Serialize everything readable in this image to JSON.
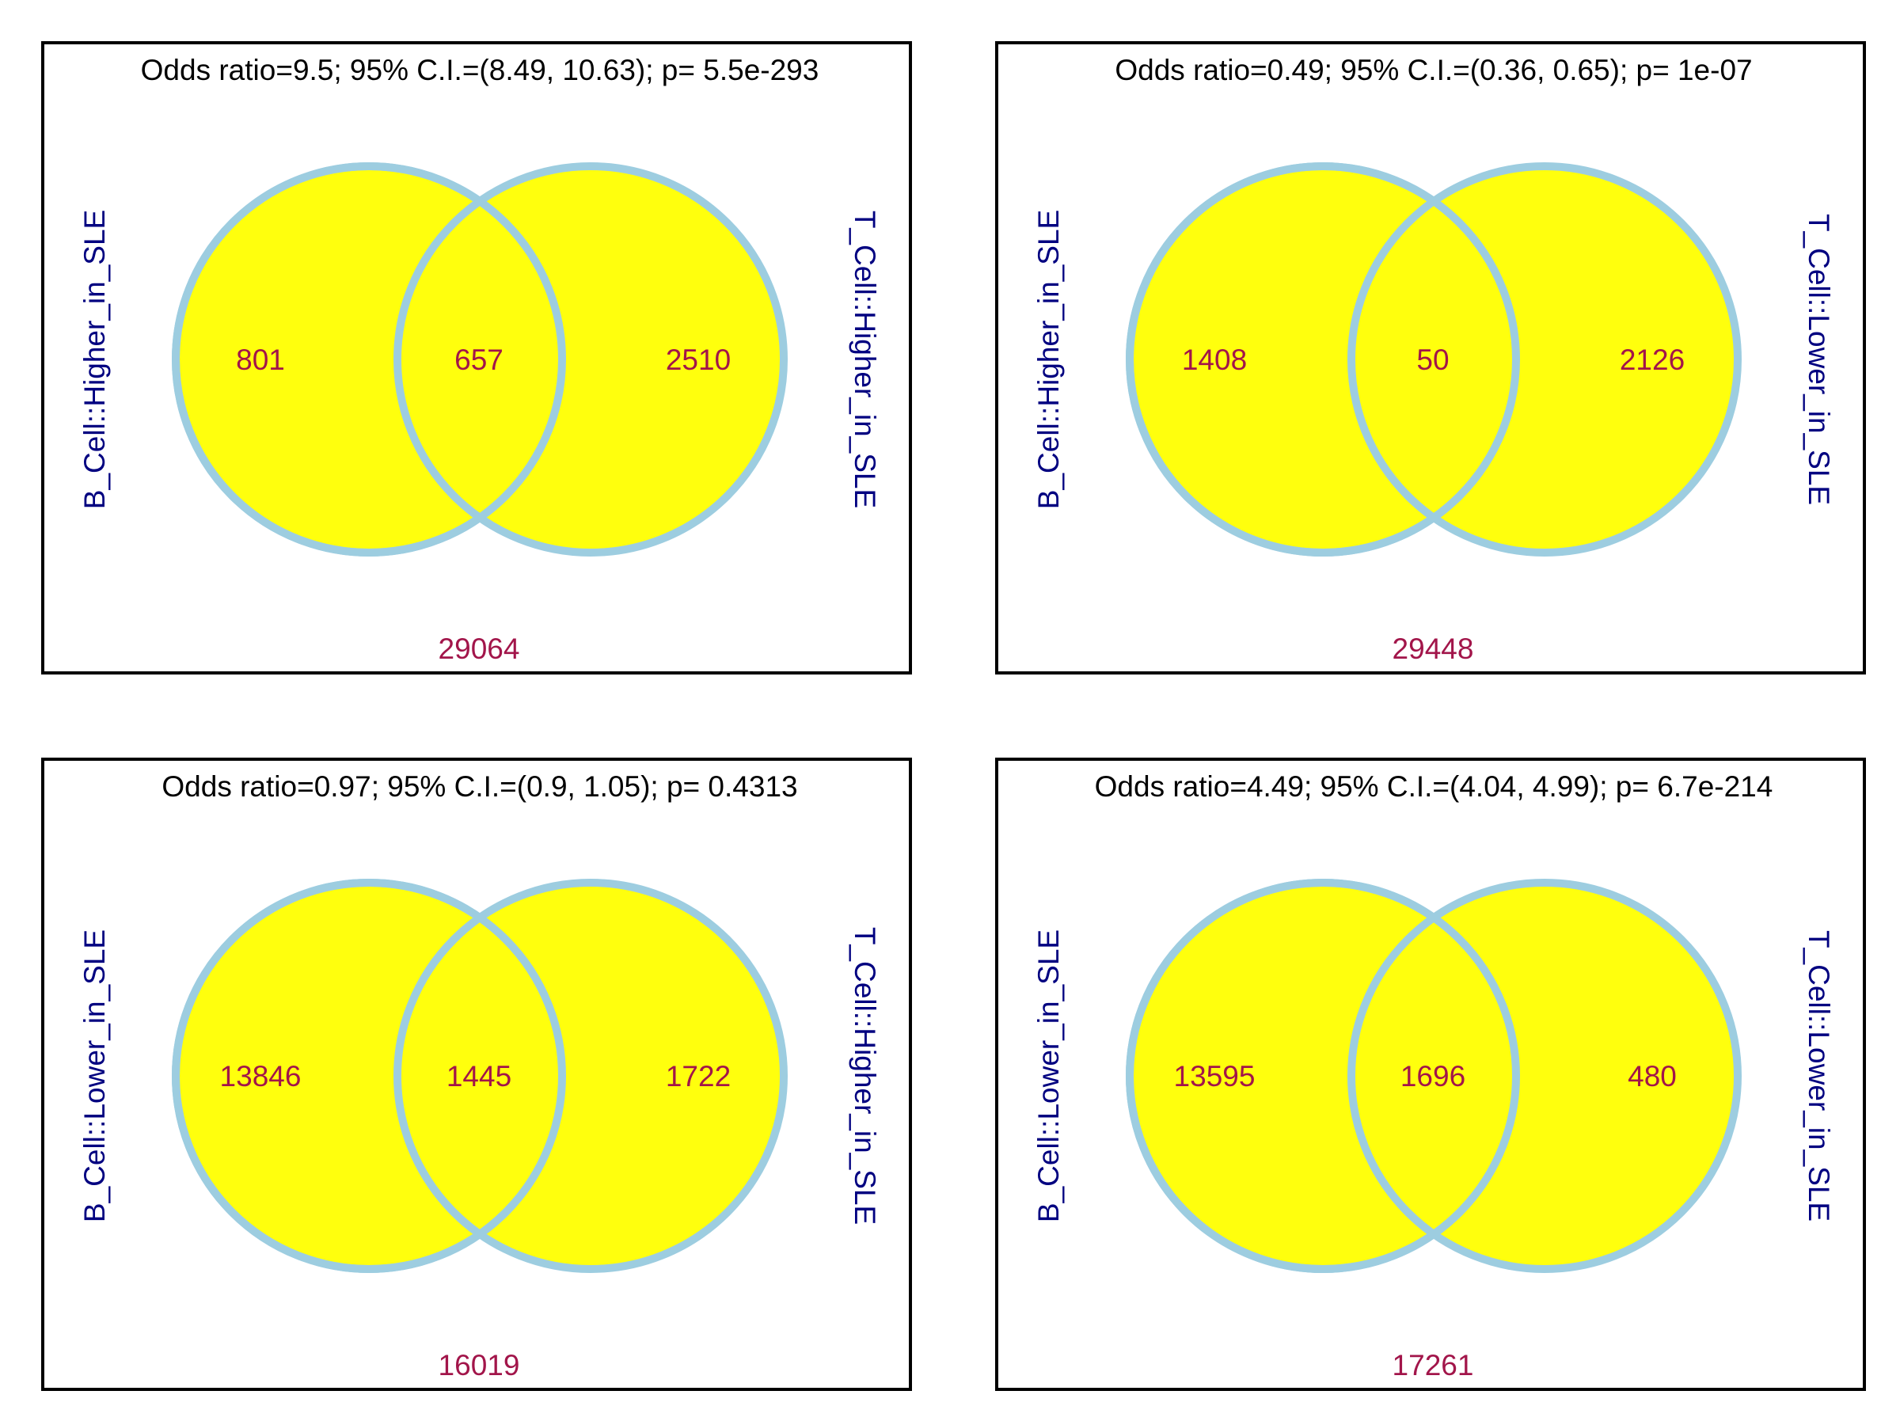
{
  "colors": {
    "circle_fill": "#ffff0d",
    "circle_stroke": "#9dcde0",
    "count_text": "#a2154a",
    "set_label": "#000080",
    "title_text": "#000000",
    "frame": "#000000"
  },
  "panels": [
    {
      "title": "Odds ratio=9.5; 95% C.I.=(8.49, 10.63); p= 5.5e-293",
      "left_set": "B_Cell::Higher_in_SLE",
      "right_set": "T_Cell::Higher_in_SLE",
      "left_only": "801",
      "intersection": "657",
      "right_only": "2510",
      "outside": "29064"
    },
    {
      "title": "Odds ratio=0.49; 95% C.I.=(0.36, 0.65); p= 1e-07",
      "left_set": "B_Cell::Higher_in_SLE",
      "right_set": "T_Cell::Lower_in_SLE",
      "left_only": "1408",
      "intersection": "50",
      "right_only": "2126",
      "outside": "29448"
    },
    {
      "title": "Odds ratio=0.97; 95% C.I.=(0.9, 1.05); p= 0.4313",
      "left_set": "B_Cell::Lower_in_SLE",
      "right_set": "T_Cell::Higher_in_SLE",
      "left_only": "13846",
      "intersection": "1445",
      "right_only": "1722",
      "outside": "16019"
    },
    {
      "title": "Odds ratio=4.49; 95% C.I.=(4.04, 4.99); p= 6.7e-214",
      "left_set": "B_Cell::Lower_in_SLE",
      "right_set": "T_Cell::Lower_in_SLE",
      "left_only": "13595",
      "intersection": "1696",
      "right_only": "480",
      "outside": "17261"
    }
  ]
}
